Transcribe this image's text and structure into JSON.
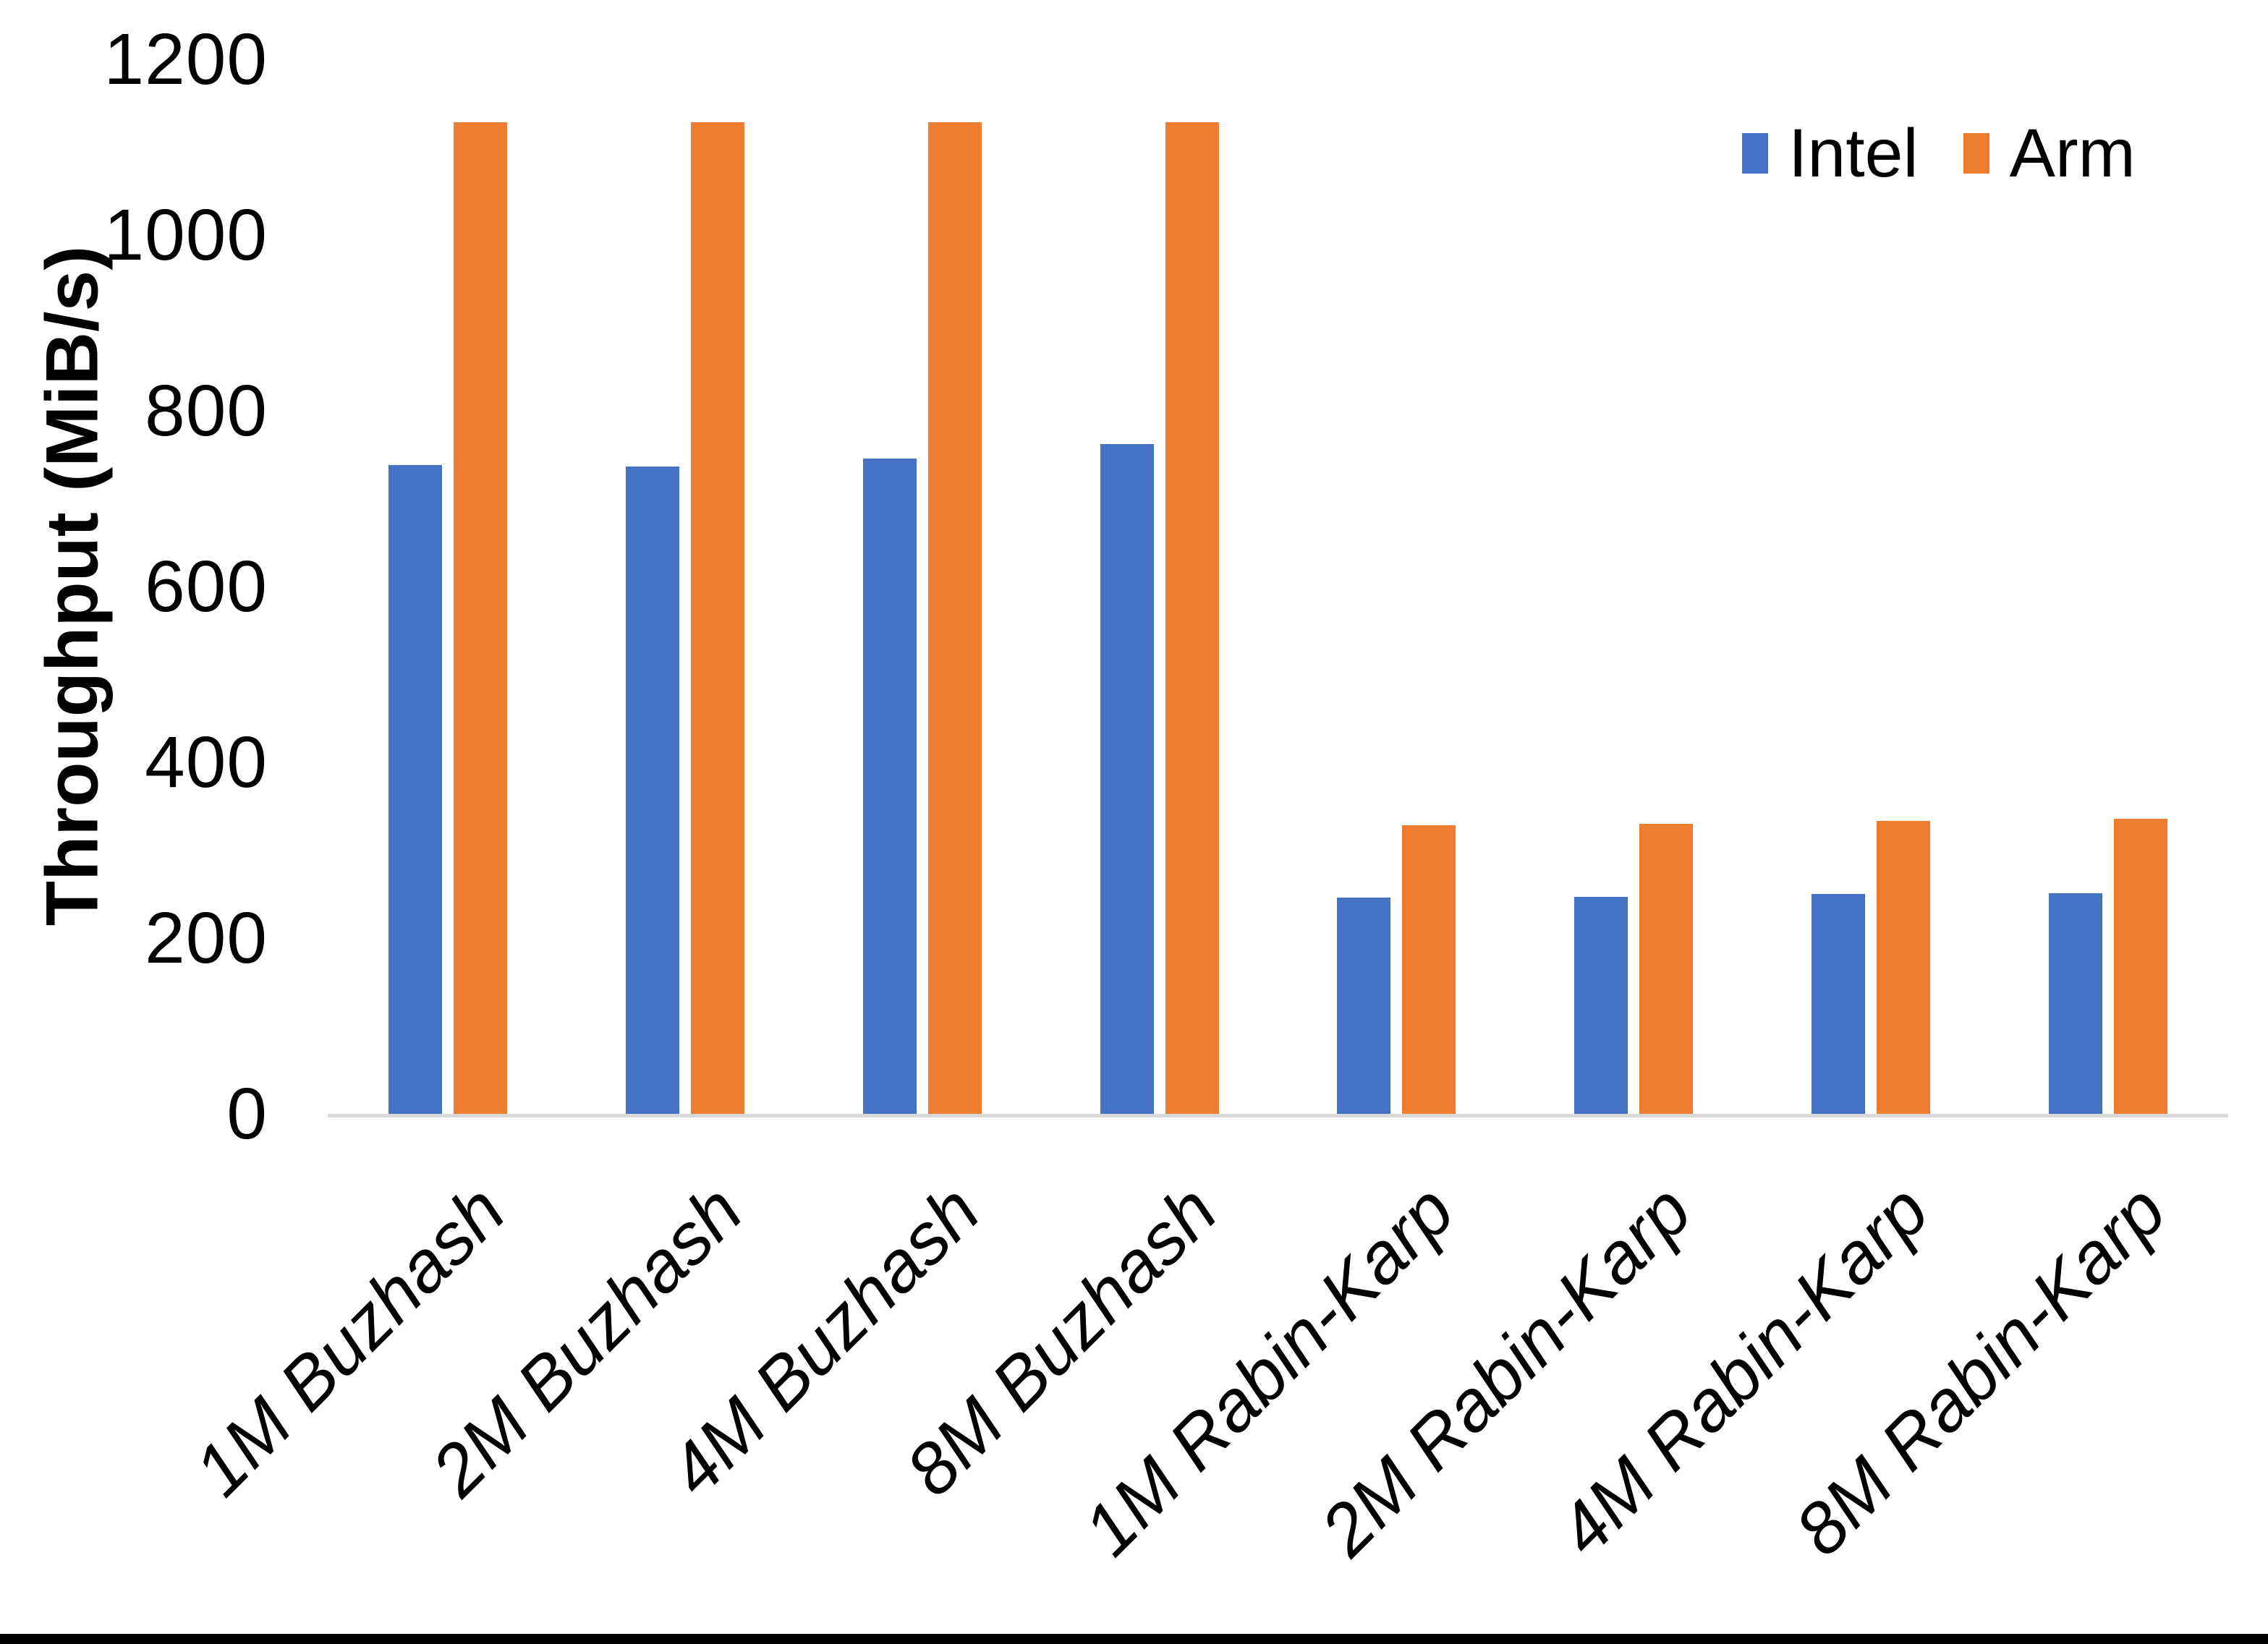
{
  "chart_data": {
    "type": "bar",
    "title": "",
    "xlabel": "",
    "ylabel": "Throughput (MiB/s)",
    "ylim": [
      0,
      1200
    ],
    "yticks": [
      0,
      200,
      400,
      600,
      800,
      1000,
      1200
    ],
    "grid": false,
    "legend_position": "top-right",
    "categories": [
      "1M Buzhash",
      "2M Buzhash",
      "4M Buzhash",
      "8M Buzhash",
      "1M Rabin-Karp",
      "2M Rabin-Karp",
      "4M Rabin-Karp",
      "8M Rabin-Karp"
    ],
    "series": [
      {
        "name": "Intel",
        "color": "#4472C4",
        "values": [
          738,
          737,
          746,
          762,
          246,
          247,
          250,
          251
        ]
      },
      {
        "name": "Arm",
        "color": "#ED7D31",
        "values": [
          1128,
          1128,
          1128,
          1128,
          328,
          330,
          333,
          336
        ]
      }
    ]
  },
  "colors": {
    "background": "#ffffff",
    "axis_line": "#d9d9d9",
    "text": "#000000",
    "bottom_border": "#000000"
  }
}
